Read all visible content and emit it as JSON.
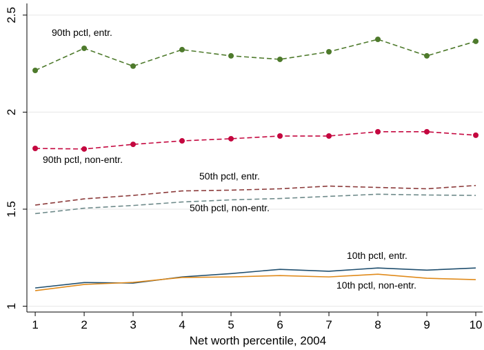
{
  "chart_data": {
    "type": "line",
    "x_label": "Net worth percentile, 2004",
    "x": [
      1,
      2,
      3,
      4,
      5,
      6,
      7,
      8,
      9,
      10
    ],
    "xlim": [
      0.83,
      10.14
    ],
    "xticks": [
      1,
      2,
      3,
      4,
      5,
      6,
      7,
      8,
      9,
      10
    ],
    "ylim": [
      0.97,
      2.56
    ],
    "yticks": [
      1,
      1.5,
      2,
      2.5
    ],
    "grid": true,
    "series": [
      {
        "name": "90th pctl, entr.",
        "color": "#4e7a2c",
        "dashed": true,
        "markers": true,
        "values": [
          2.215,
          2.329,
          2.237,
          2.322,
          2.29,
          2.272,
          2.311,
          2.375,
          2.29,
          2.365
        ]
      },
      {
        "name": "90th pctl, non-entr.",
        "color": "#c4073f",
        "dashed": true,
        "markers": true,
        "values": [
          1.813,
          1.81,
          1.834,
          1.852,
          1.863,
          1.877,
          1.877,
          1.899,
          1.899,
          1.881
        ]
      },
      {
        "name": "50th pctl, entr.",
        "color": "#8b3a3a",
        "dashed": true,
        "markers": false,
        "values": [
          1.521,
          1.553,
          1.571,
          1.594,
          1.598,
          1.605,
          1.619,
          1.612,
          1.605,
          1.622
        ]
      },
      {
        "name": "50th pctl, non-entr.",
        "color": "#6e8a8a",
        "dashed": true,
        "markers": false,
        "values": [
          1.477,
          1.505,
          1.519,
          1.537,
          1.548,
          1.555,
          1.566,
          1.577,
          1.573,
          1.571
        ]
      },
      {
        "name": "10th pctl, entr.",
        "color": "#1f4e6e",
        "dashed": false,
        "markers": false,
        "values": [
          1.094,
          1.122,
          1.119,
          1.151,
          1.168,
          1.19,
          1.18,
          1.197,
          1.186,
          1.197
        ]
      },
      {
        "name": "10th pctl, non-entr.",
        "color": "#e08a1a",
        "dashed": false,
        "markers": false,
        "values": [
          1.08,
          1.112,
          1.123,
          1.148,
          1.151,
          1.158,
          1.151,
          1.165,
          1.144,
          1.137
        ]
      }
    ]
  }
}
